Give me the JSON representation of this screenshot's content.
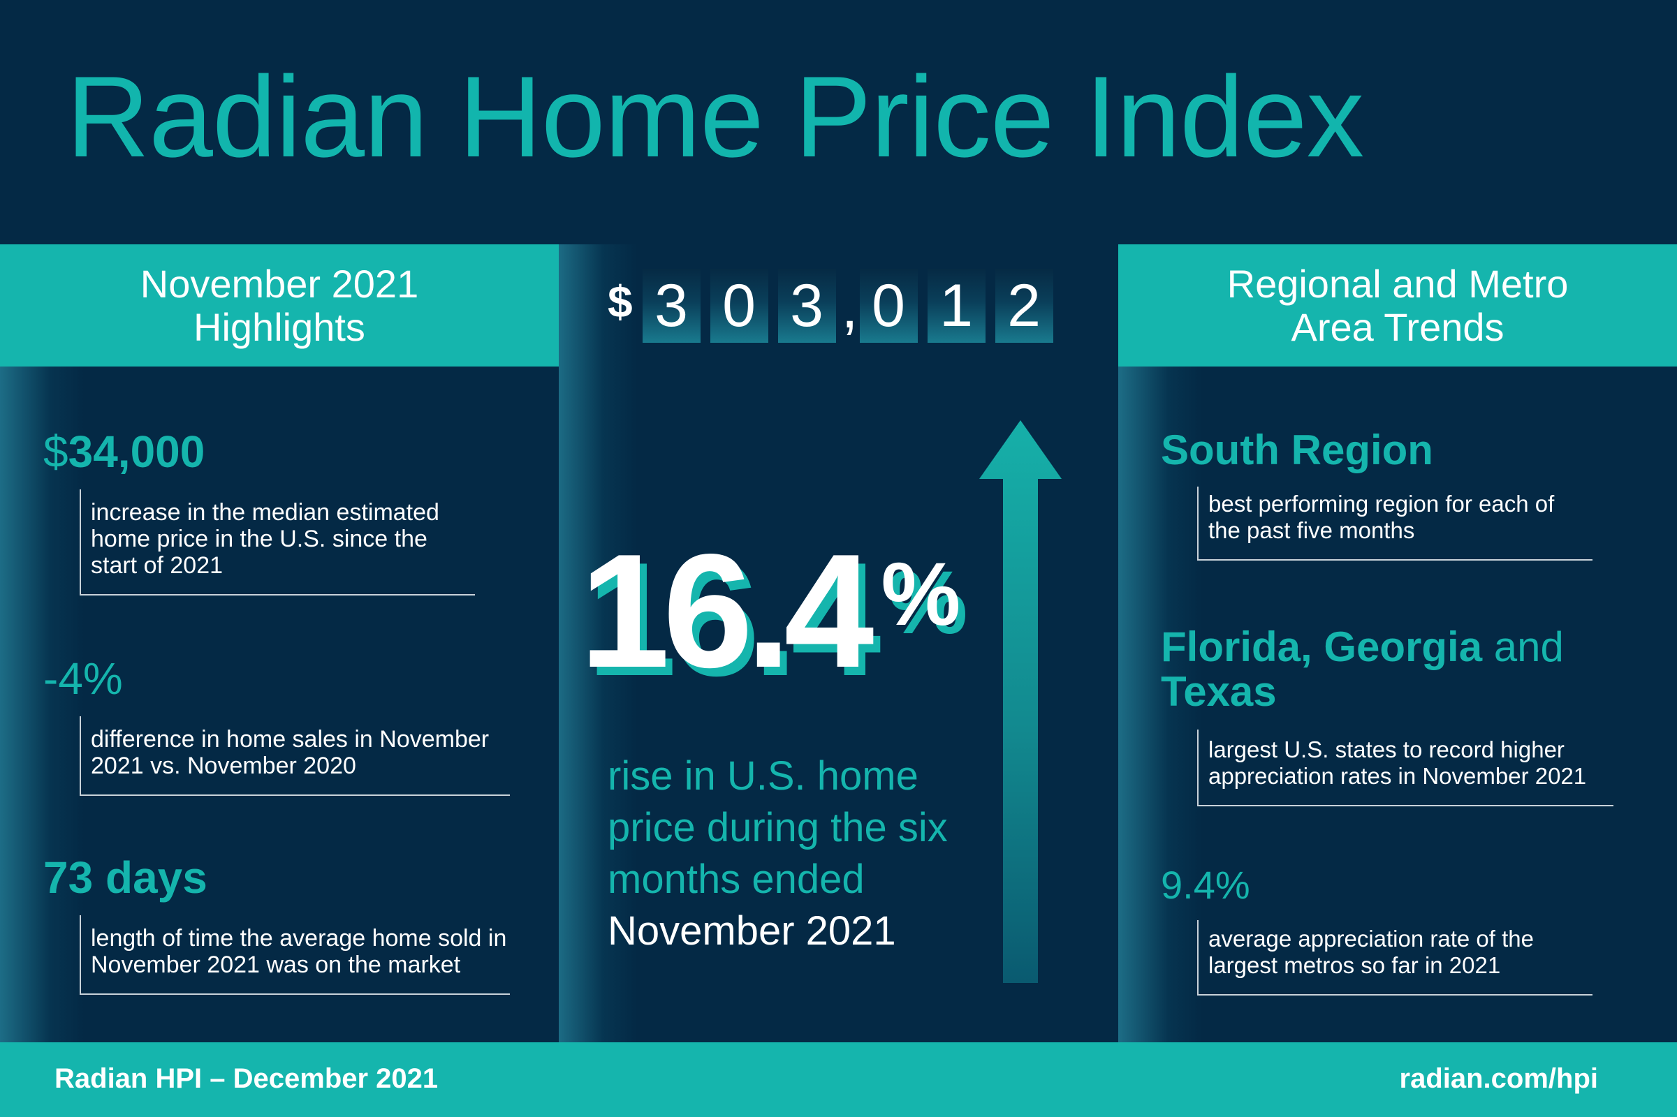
{
  "title": "Radian Home Price Index",
  "colors": {
    "background": "#042945",
    "accent": "#15b5ad",
    "text": "#ffffff"
  },
  "left": {
    "header_line1": "November 2021",
    "header_line2": "Highlights",
    "items": [
      {
        "value_symbol": "$",
        "value": "34,000",
        "description": "increase in the median estimated home price in the U.S. since the start of 2021"
      },
      {
        "value": "-4%",
        "description": "difference in home sales in November 2021 vs. November 2020"
      },
      {
        "value": "73 days",
        "description": "length of time the average home sold in November 2021 was on the market"
      }
    ]
  },
  "center": {
    "price_symbol": "$",
    "price_digits": [
      "3",
      "0",
      "3",
      "0",
      "1",
      "2"
    ],
    "price_separator": ",",
    "big_number": "16.4",
    "big_symbol": "%",
    "rise_text": "rise in U.S. home price during the six months ended",
    "rise_highlight": "November 2021",
    "arrow_icon": "up-arrow-icon"
  },
  "right": {
    "header_line1": "Regional and Metro",
    "header_line2": "Area Trends",
    "items": [
      {
        "value": "South Region",
        "description": "best performing region for each of the past five months"
      },
      {
        "value_bold": "Florida, Georgia",
        "value_light": "and",
        "value_line2": "Texas",
        "description": "largest U.S. states to record higher appreciation rates in November 2021"
      },
      {
        "value": "9.4%",
        "description": "average appreciation rate of the largest metros so far in 2021"
      }
    ]
  },
  "footer": {
    "left": "Radian HPI – December 2021",
    "right": "radian.com/hpi"
  }
}
